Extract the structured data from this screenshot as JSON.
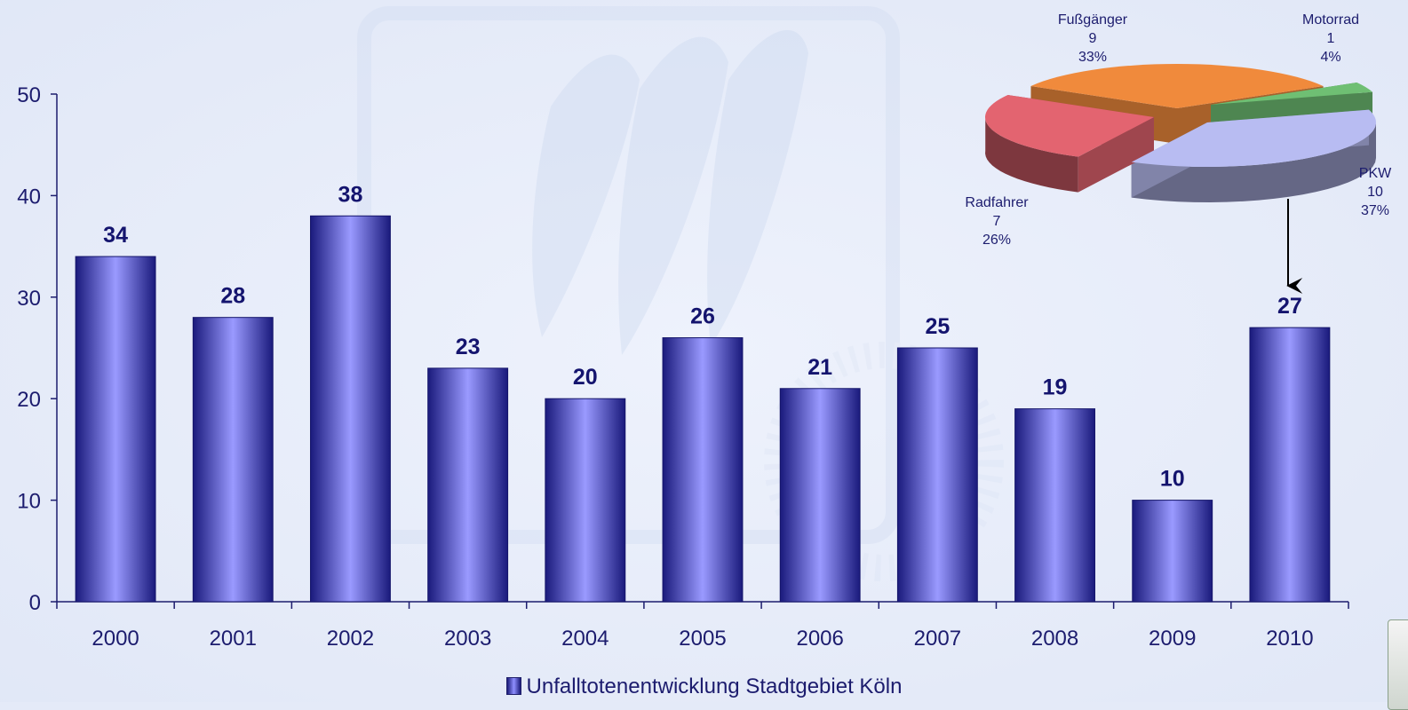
{
  "chart_data": [
    {
      "type": "bar",
      "categories": [
        "2000",
        "2001",
        "2002",
        "2003",
        "2004",
        "2005",
        "2006",
        "2007",
        "2008",
        "2009",
        "2010"
      ],
      "series": [
        {
          "name": "Unfalltotenentwicklung Stadtgebiet Köln",
          "values": [
            34,
            28,
            38,
            23,
            20,
            26,
            21,
            25,
            19,
            10,
            27
          ]
        }
      ],
      "ylim": [
        0,
        50
      ],
      "yticks": [
        0,
        10,
        20,
        30,
        40,
        50
      ],
      "grid": false,
      "legend_position": "bottom",
      "color": "#8f8fff"
    },
    {
      "type": "pie",
      "slices": [
        {
          "label": "Fußgänger",
          "value": 9,
          "percent": "33%",
          "color": "#f08a3c"
        },
        {
          "label": "Motorrad",
          "value": 1,
          "percent": "4%",
          "color": "#6fbf73"
        },
        {
          "label": "PKW",
          "value": 10,
          "percent": "37%",
          "color": "#b8bcf2"
        },
        {
          "label": "Radfahrer",
          "value": 7,
          "percent": "26%",
          "color": "#e36470"
        }
      ],
      "annotation": "breakdown of 2010"
    }
  ]
}
